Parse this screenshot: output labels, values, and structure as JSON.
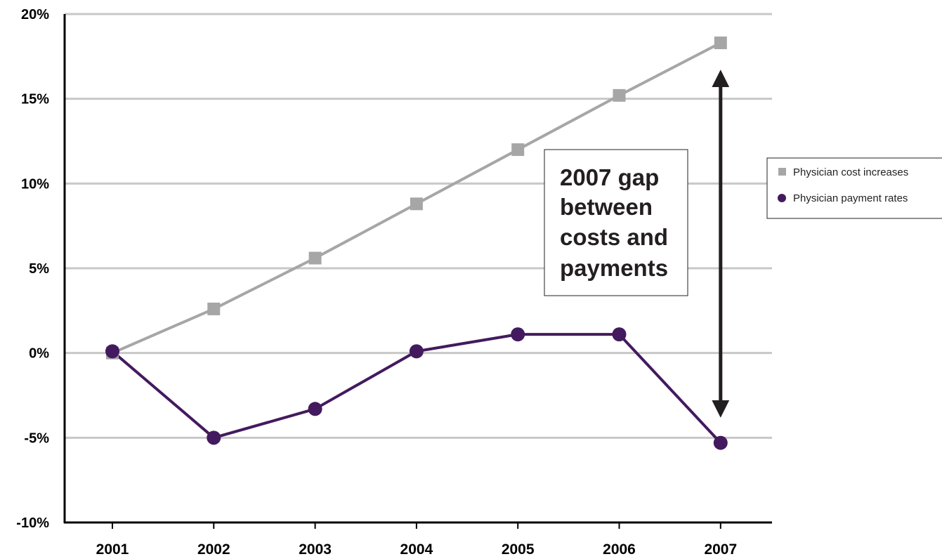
{
  "chart_data": {
    "type": "line",
    "categories": [
      "2001",
      "2002",
      "2003",
      "2004",
      "2005",
      "2006",
      "2007"
    ],
    "series": [
      {
        "name": "Physician cost increases",
        "values": [
          0,
          2.6,
          5.6,
          8.8,
          12.0,
          15.2,
          18.3
        ],
        "color": "#a6a6a6",
        "marker": "square"
      },
      {
        "name": "Physician payment rates",
        "values": [
          0.1,
          -5.0,
          -3.3,
          0.1,
          1.1,
          1.1,
          -5.3
        ],
        "color": "#431a5e",
        "marker": "circle"
      }
    ],
    "y_ticks": [
      "20%",
      "15%",
      "10%",
      "5%",
      "0%",
      "-5%",
      "-10%"
    ],
    "y_tick_values": [
      20,
      15,
      10,
      5,
      0,
      -5,
      -10
    ],
    "ylim": [
      -10,
      20
    ],
    "grid": true,
    "legend_position": "right",
    "annotation": {
      "lines": [
        "2007 gap",
        "between",
        "costs and",
        "payments"
      ],
      "arrow_category": "2007",
      "arrow_range": [
        -3.3,
        16.2
      ]
    },
    "title": "",
    "xlabel": "",
    "ylabel": ""
  }
}
